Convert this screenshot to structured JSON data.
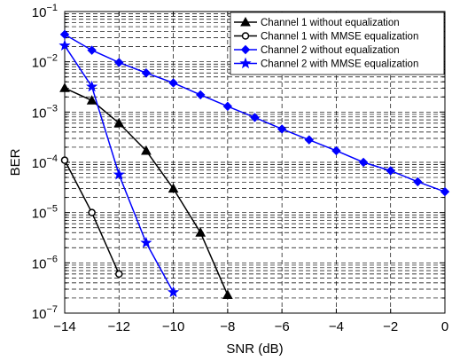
{
  "chart_data": {
    "type": "line",
    "title": "",
    "xlabel": "SNR (dB)",
    "ylabel": "BER",
    "xscale": "linear",
    "yscale": "log",
    "xlim": [
      -14,
      0
    ],
    "ylim": [
      1e-07,
      0.1
    ],
    "x_ticks": [
      {
        "value": -14,
        "label": "−14"
      },
      {
        "value": -12,
        "label": "−12"
      },
      {
        "value": -10,
        "label": "−10"
      },
      {
        "value": -8,
        "label": "−8"
      },
      {
        "value": -6,
        "label": "−6"
      },
      {
        "value": -4,
        "label": "−4"
      },
      {
        "value": -2,
        "label": "−2"
      },
      {
        "value": 0,
        "label": "0"
      }
    ],
    "y_ticks": [
      {
        "exp": -1,
        "base": "10",
        "sup": "−1"
      },
      {
        "exp": -2,
        "base": "10",
        "sup": "−2"
      },
      {
        "exp": -3,
        "base": "10",
        "sup": "−3"
      },
      {
        "exp": -4,
        "base": "10",
        "sup": "−4"
      },
      {
        "exp": -5,
        "base": "10",
        "sup": "−5"
      },
      {
        "exp": -6,
        "base": "10",
        "sup": "−6"
      },
      {
        "exp": -7,
        "base": "10",
        "sup": "−7"
      }
    ],
    "grid": true,
    "legend_position": "top-right",
    "series": [
      {
        "name": "Channel 1 without equalization",
        "color": "#000000",
        "marker": "triangle",
        "x": [
          -14,
          -13,
          -12,
          -11,
          -10,
          -9,
          -8
        ],
        "y": [
          0.003,
          0.0017,
          0.0006,
          0.00017,
          3e-05,
          4e-06,
          2.3e-07
        ]
      },
      {
        "name": "Channel 1 with MMSE equalization",
        "color": "#000000",
        "marker": "circle",
        "x": [
          -14,
          -13,
          -12
        ],
        "y": [
          0.00011,
          1e-05,
          6e-07
        ]
      },
      {
        "name": "Channel 2 without equalization",
        "color": "#0000ff",
        "marker": "diamond",
        "x": [
          -14,
          -13,
          -12,
          -11,
          -10,
          -9,
          -8,
          -7,
          -6,
          -5,
          -4,
          -3,
          -2,
          -1,
          0
        ],
        "y": [
          0.035,
          0.017,
          0.0097,
          0.006,
          0.0038,
          0.0022,
          0.0013,
          0.00078,
          0.00046,
          0.00028,
          0.00017,
          0.0001,
          6.8e-05,
          4.1e-05,
          2.6e-05
        ]
      },
      {
        "name": "Channel 2 with MMSE equalization",
        "color": "#0000ff",
        "marker": "star",
        "x": [
          -14,
          -13,
          -12,
          -11,
          -10
        ],
        "y": [
          0.021,
          0.0032,
          5.7e-05,
          2.5e-06,
          2.6e-07
        ]
      }
    ]
  }
}
